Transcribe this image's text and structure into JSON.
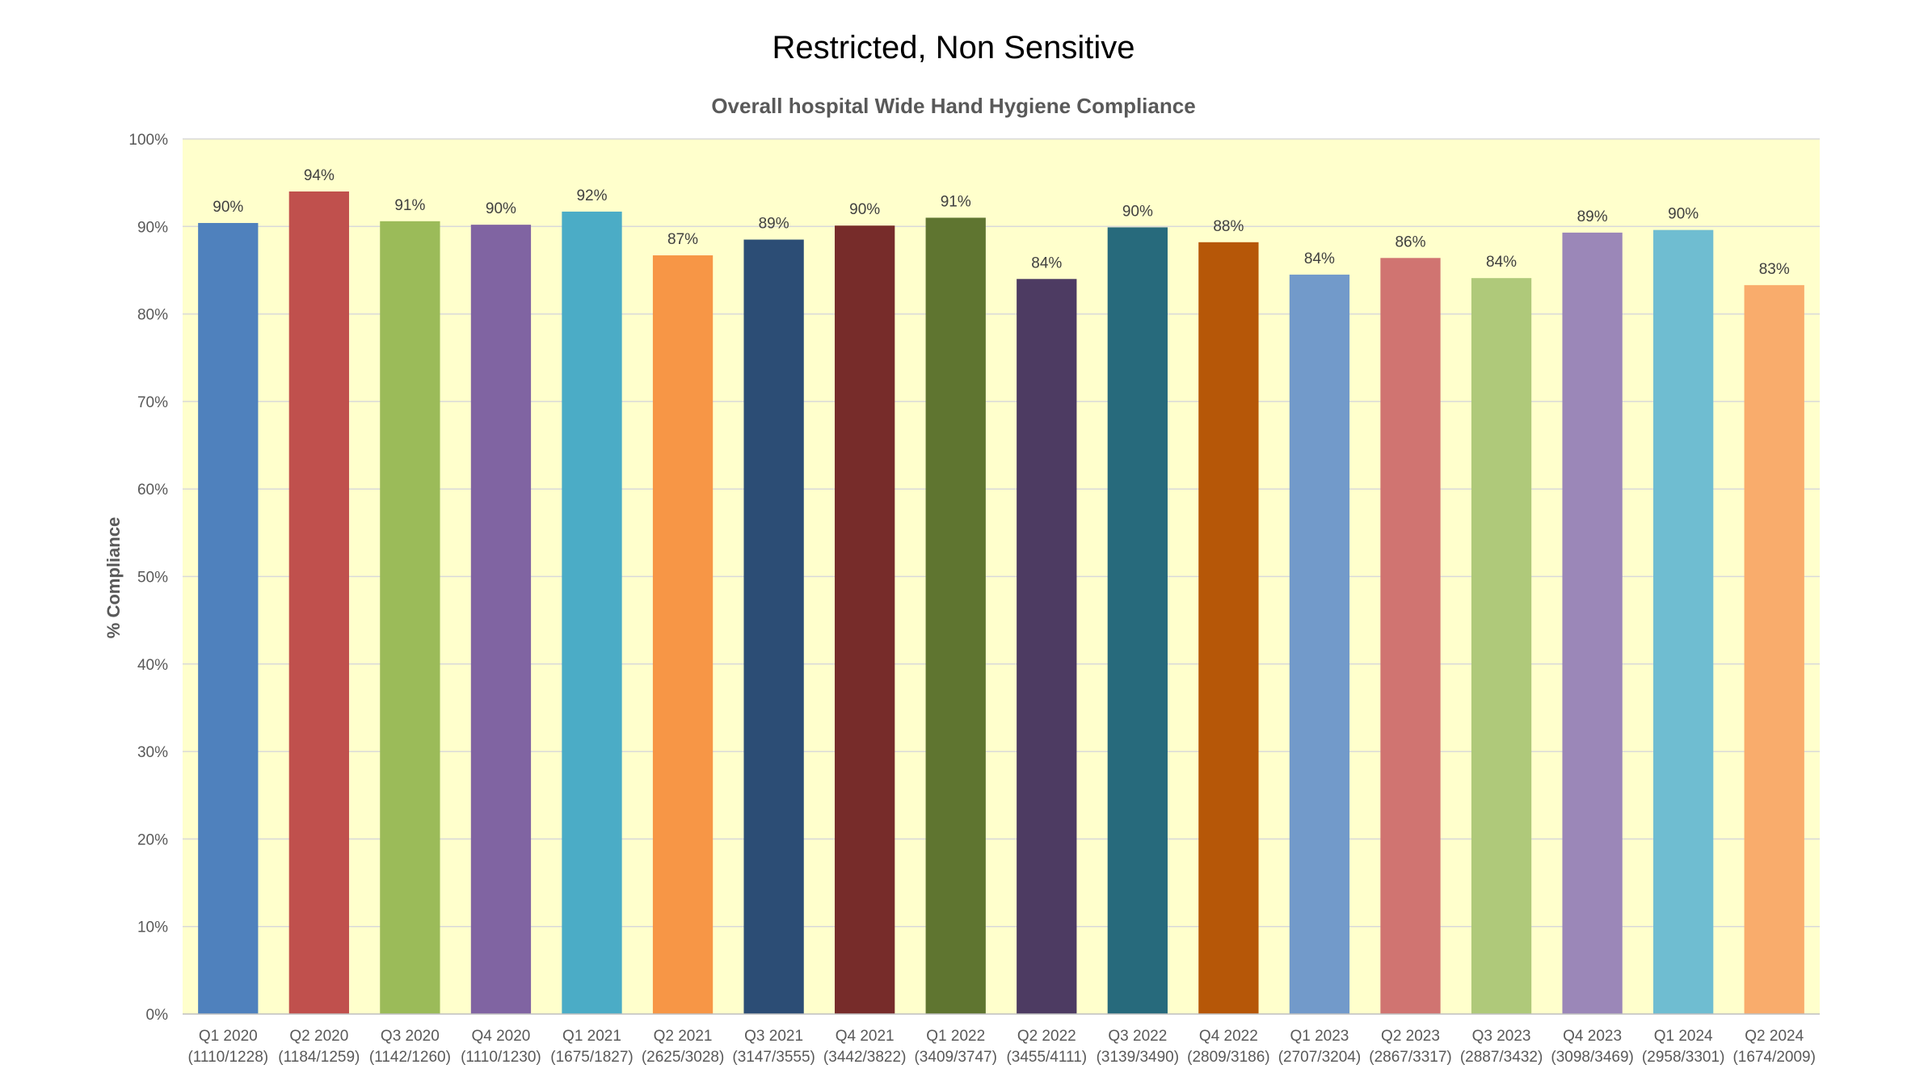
{
  "header": {
    "classification": "Restricted, Non Sensitive"
  },
  "chart_data": {
    "type": "bar",
    "title": "Overall hospital Wide Hand Hygiene Compliance",
    "ylabel": "% Compliance",
    "xlabel": "",
    "ylim": [
      0,
      100
    ],
    "y_ticks": [
      "0%",
      "10%",
      "20%",
      "30%",
      "40%",
      "50%",
      "60%",
      "70%",
      "80%",
      "90%",
      "100%"
    ],
    "grid": true,
    "plot_background": "#ffffcc",
    "categories": [
      "Q1 2020",
      "Q2 2020",
      "Q3 2020",
      "Q4 2020",
      "Q1 2021",
      "Q2 2021",
      "Q3 2021",
      "Q4 2021",
      "Q1 2022",
      "Q2 2022",
      "Q3 2022",
      "Q4 2022",
      "Q1 2023",
      "Q2 2023",
      "Q3 2023",
      "Q4 2023",
      "Q1 2024",
      "Q2 2024"
    ],
    "category_counts": [
      "(1110/1228)",
      "(1184/1259)",
      "(1142/1260)",
      "(1110/1230)",
      "(1675/1827)",
      "(2625/3028)",
      "(3147/3555)",
      "(3442/3822)",
      "(3409/3747)",
      "(3455/4111)",
      "(3139/3490)",
      "(2809/3186)",
      "(2707/3204)",
      "(2867/3317)",
      "(2887/3432)",
      "(3098/3469)",
      "(2958/3301)",
      "(1674/2009)"
    ],
    "values": [
      90.4,
      94.0,
      90.6,
      90.2,
      91.7,
      86.7,
      88.5,
      90.1,
      91.0,
      84.0,
      89.9,
      88.2,
      84.5,
      86.4,
      84.1,
      89.3,
      89.6,
      83.3
    ],
    "data_labels": [
      "90%",
      "94%",
      "91%",
      "90%",
      "92%",
      "87%",
      "89%",
      "90%",
      "91%",
      "84%",
      "90%",
      "88%",
      "84%",
      "86%",
      "84%",
      "89%",
      "90%",
      "83%"
    ],
    "colors": [
      "#4f81bd",
      "#c0504d",
      "#9bbb59",
      "#8064a2",
      "#4bacc6",
      "#f79646",
      "#2c4d75",
      "#772c2a",
      "#5f7530",
      "#4d3b62",
      "#276a7c",
      "#b65708",
      "#729aca",
      "#d07471",
      "#afc97a",
      "#9b87b8",
      "#6fbdd1",
      "#f9ac6c"
    ]
  }
}
